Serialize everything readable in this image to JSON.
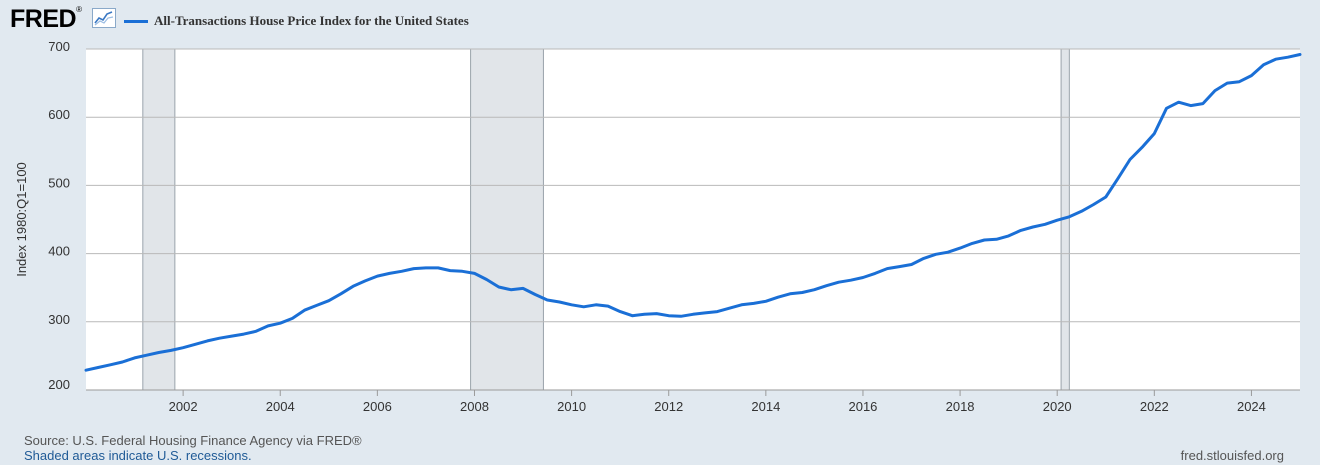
{
  "header": {
    "logo_text": "FRED",
    "logo_registered": "®",
    "logo_icon": "chart-line-icon",
    "legend_label": "All-Transactions House Price Index for the United States"
  },
  "footer": {
    "source": "Source: U.S. Federal Housing Finance Agency via FRED®",
    "note": "Shaded areas indicate U.S. recessions.",
    "url": "fred.stlouisfed.org"
  },
  "colors": {
    "line": "#1a6fd6",
    "background": "#e1e9f0",
    "plot": "#ffffff",
    "recession": "#e1e5e9",
    "grid": "#b9b9b9"
  },
  "chart_data": {
    "type": "line",
    "title": "",
    "xlabel": "",
    "ylabel": "Index 1980:Q1=100",
    "xlim": [
      2000.0,
      2025.0
    ],
    "ylim": [
      200,
      700
    ],
    "y_ticks": [
      200,
      300,
      400,
      500,
      600,
      700
    ],
    "x_ticks": [
      2002,
      2004,
      2006,
      2008,
      2010,
      2012,
      2014,
      2016,
      2018,
      2020,
      2022,
      2024
    ],
    "grid": "horizontal",
    "recessions": [
      [
        2001.17,
        2001.83
      ],
      [
        2007.92,
        2009.42
      ],
      [
        2020.08,
        2020.25
      ]
    ],
    "series": [
      {
        "name": "All-Transactions House Price Index for the United States",
        "x": [
          2000.0,
          2000.25,
          2000.5,
          2000.75,
          2001.0,
          2001.25,
          2001.5,
          2001.75,
          2002.0,
          2002.25,
          2002.5,
          2002.75,
          2003.0,
          2003.25,
          2003.5,
          2003.75,
          2004.0,
          2004.25,
          2004.5,
          2004.75,
          2005.0,
          2005.25,
          2005.5,
          2005.75,
          2006.0,
          2006.25,
          2006.5,
          2006.75,
          2007.0,
          2007.25,
          2007.5,
          2007.75,
          2008.0,
          2008.25,
          2008.5,
          2008.75,
          2009.0,
          2009.25,
          2009.5,
          2009.75,
          2010.0,
          2010.25,
          2010.5,
          2010.75,
          2011.0,
          2011.25,
          2011.5,
          2011.75,
          2012.0,
          2012.25,
          2012.5,
          2012.75,
          2013.0,
          2013.25,
          2013.5,
          2013.75,
          2014.0,
          2014.25,
          2014.5,
          2014.75,
          2015.0,
          2015.25,
          2015.5,
          2015.75,
          2016.0,
          2016.25,
          2016.5,
          2016.75,
          2017.0,
          2017.25,
          2017.5,
          2017.75,
          2018.0,
          2018.25,
          2018.5,
          2018.75,
          2019.0,
          2019.25,
          2019.5,
          2019.75,
          2020.0,
          2020.25,
          2020.5,
          2020.75,
          2021.0,
          2021.25,
          2021.5,
          2021.75,
          2022.0,
          2022.25,
          2022.5,
          2022.75,
          2023.0,
          2023.25,
          2023.5,
          2023.75,
          2024.0,
          2024.25,
          2024.5,
          2024.75,
          2025.0
        ],
        "values": [
          229,
          233,
          237,
          241,
          247,
          251,
          255,
          258,
          262,
          267,
          272,
          276,
          279,
          282,
          286,
          294,
          298,
          305,
          317,
          324,
          331,
          341,
          352,
          360,
          367,
          371,
          374,
          378,
          379,
          379,
          375,
          374,
          371,
          362,
          351,
          347,
          349,
          340,
          332,
          329,
          325,
          322,
          325,
          323,
          315,
          309,
          311,
          312,
          309,
          308,
          311,
          313,
          315,
          320,
          325,
          327,
          330,
          336,
          341,
          343,
          347,
          353,
          358,
          361,
          365,
          371,
          378,
          381,
          384,
          393,
          399,
          402,
          408,
          415,
          420,
          421,
          426,
          434,
          439,
          443,
          449,
          454,
          462,
          472,
          483,
          510,
          538,
          556,
          576,
          613,
          622,
          617,
          620,
          639,
          650,
          652,
          661,
          677,
          685,
          688,
          692
        ]
      }
    ]
  }
}
